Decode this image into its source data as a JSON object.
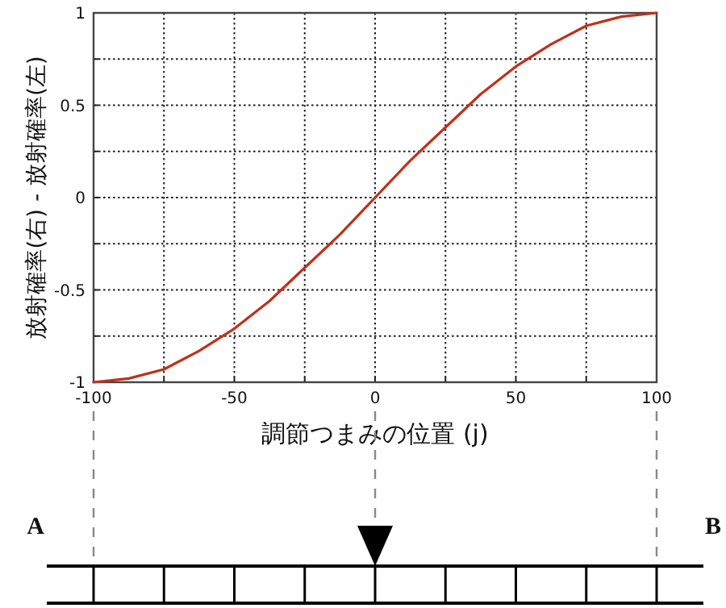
{
  "chart_data": {
    "type": "line",
    "xlabel": "調節つまみの位置 (j)",
    "ylabel": "放射確率(右) - 放射確率(左)",
    "x": [
      -100,
      -87.5,
      -75,
      -62.5,
      -50,
      -37.5,
      -25,
      -12.5,
      0,
      12.5,
      25,
      37.5,
      50,
      62.5,
      75,
      87.5,
      100
    ],
    "series": [
      {
        "color": "#c0301a",
        "values": [
          -1,
          -0.98,
          -0.93,
          -0.83,
          -0.71,
          -0.56,
          -0.38,
          -0.2,
          0,
          0.2,
          0.38,
          0.56,
          0.71,
          0.83,
          0.93,
          0.98,
          1
        ]
      }
    ],
    "xlim": [
      -100,
      100
    ],
    "ylim": [
      -1,
      1
    ],
    "xticks": [
      -100,
      {
        "value": -75,
        "label": null
      },
      -50,
      {
        "value": -25,
        "label": null
      },
      0,
      {
        "value": 25,
        "label": null
      },
      50,
      {
        "value": 75,
        "label": null
      },
      100
    ],
    "yticks": [
      -1,
      {
        "value": -0.75,
        "label": null
      },
      -0.5,
      {
        "value": -0.25,
        "label": null
      },
      0,
      {
        "value": 0.25,
        "label": null
      },
      0.5,
      {
        "value": 0.75,
        "label": null
      },
      1
    ],
    "grid": true,
    "marker": "none",
    "line_style": "solid",
    "annotations": [
      "A",
      "B"
    ]
  }
}
